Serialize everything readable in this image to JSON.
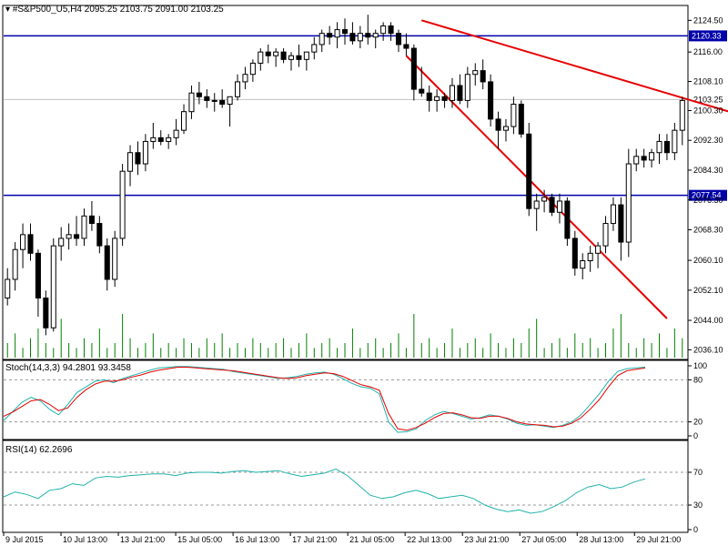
{
  "header": {
    "symbol": "#S&P500_U5,H4",
    "open": "2095.25",
    "high": "2103.75",
    "low": "2091.00",
    "close": "2103.25"
  },
  "colors": {
    "bull_body": "#ffffff",
    "bear_body": "#000000",
    "candle_outline": "#000000",
    "resistance_line": "#0000aa",
    "trend_line": "#e60000",
    "volume": "#008000",
    "stoch_main": "#20b2aa",
    "stoch_signal": "#e60000",
    "rsi": "#20b2aa",
    "current_price_line": "#c0c0c0",
    "label_bg": "#0000aa"
  },
  "chart_data": [
    {
      "type": "candlestick",
      "panel": "price",
      "y_ticks": [
        "2124.50",
        "2116.00",
        "2108.10",
        "2100.30",
        "2092.30",
        "2084.30",
        "2076.30",
        "2068.30",
        "2060.10",
        "2052.10",
        "2044.00",
        "2036.10"
      ],
      "ylim": [
        2034,
        2128
      ],
      "x_ticks": [
        "9 Jul 2015",
        "10 Jul 13:00",
        "13 Jul 21:00",
        "15 Jul 05:00",
        "16 Jul 13:00",
        "17 Jul 21:00",
        "21 Jul 05:00",
        "22 Jul 13:00",
        "23 Jul 21:00",
        "27 Jul 05:00",
        "28 Jul 13:00",
        "29 Jul 21:00"
      ],
      "horizontal_levels": [
        {
          "label": "2120.33",
          "value": 2120.33
        },
        {
          "label": "2077.54",
          "value": 2077.54
        }
      ],
      "current_price": {
        "label": "2103.25",
        "value": 2103.25
      },
      "trend_lines": [
        {
          "from": [
            54,
            2124.5
          ],
          "to": [
            117,
            2086.0
          ]
        },
        {
          "from": [
            52,
            2115.0
          ],
          "to": [
            86,
            2044.5
          ]
        }
      ],
      "candles": [
        [
          2050,
          2058,
          2048,
          2055
        ],
        [
          2055,
          2065,
          2052,
          2063
        ],
        [
          2063,
          2070,
          2058,
          2067
        ],
        [
          2067,
          2070,
          2060,
          2062
        ],
        [
          2062,
          2063,
          2045,
          2050
        ],
        [
          2050,
          2052,
          2040,
          2042
        ],
        [
          2042,
          2066,
          2041,
          2064
        ],
        [
          2064,
          2069,
          2060,
          2066
        ],
        [
          2066,
          2070,
          2063,
          2067
        ],
        [
          2067,
          2072,
          2064,
          2066
        ],
        [
          2066,
          2074,
          2064,
          2072
        ],
        [
          2072,
          2076,
          2068,
          2070
        ],
        [
          2070,
          2072,
          2062,
          2064
        ],
        [
          2064,
          2066,
          2052,
          2055
        ],
        [
          2055,
          2068,
          2053,
          2066
        ],
        [
          2066,
          2086,
          2064,
          2084
        ],
        [
          2084,
          2091,
          2080,
          2089
        ],
        [
          2089,
          2092,
          2083,
          2086
        ],
        [
          2086,
          2094,
          2084,
          2092
        ],
        [
          2092,
          2097,
          2090,
          2093
        ],
        [
          2093,
          2095,
          2091,
          2092
        ],
        [
          2092,
          2094,
          2090,
          2093
        ],
        [
          2093,
          2098,
          2091,
          2095
        ],
        [
          2095,
          2102,
          2094,
          2100
        ],
        [
          2100,
          2107,
          2098,
          2105
        ],
        [
          2105,
          2108,
          2102,
          2104
        ],
        [
          2104,
          2106,
          2101,
          2103
        ],
        [
          2103,
          2105,
          2100,
          2103
        ],
        [
          2103,
          2106,
          2101,
          2102
        ],
        [
          2102,
          2104,
          2096,
          2104
        ],
        [
          2104,
          2110,
          2103,
          2108
        ],
        [
          2108,
          2112,
          2106,
          2110
        ],
        [
          2110,
          2114,
          2108,
          2113
        ],
        [
          2113,
          2117,
          2111,
          2116
        ],
        [
          2116,
          2118,
          2113,
          2115
        ],
        [
          2115,
          2117,
          2112,
          2116
        ],
        [
          2116,
          2117,
          2113,
          2114
        ],
        [
          2114,
          2116,
          2111,
          2115
        ],
        [
          2115,
          2118,
          2112,
          2114
        ],
        [
          2114,
          2116,
          2111,
          2116
        ],
        [
          2116,
          2120,
          2114,
          2118
        ],
        [
          2118,
          2122,
          2116,
          2121
        ],
        [
          2121,
          2123,
          2118,
          2120
        ],
        [
          2120,
          2124,
          2117,
          2122
        ],
        [
          2122,
          2125,
          2118,
          2121
        ],
        [
          2121,
          2124,
          2118,
          2119
        ],
        [
          2119,
          2123,
          2117,
          2121
        ],
        [
          2121,
          2126,
          2118,
          2120
        ],
        [
          2120,
          2122,
          2117,
          2121
        ],
        [
          2121,
          2124,
          2119,
          2123
        ],
        [
          2123,
          2124,
          2119,
          2121
        ],
        [
          2121,
          2122,
          2116,
          2118
        ],
        [
          2118,
          2121,
          2115,
          2117
        ],
        [
          2117,
          2118,
          2103,
          2106
        ],
        [
          2106,
          2112,
          2104,
          2105
        ],
        [
          2105,
          2107,
          2100,
          2103
        ],
        [
          2103,
          2106,
          2100,
          2104
        ],
        [
          2104,
          2105,
          2101,
          2103
        ],
        [
          2103,
          2109,
          2101,
          2107
        ],
        [
          2107,
          2110,
          2102,
          2103
        ],
        [
          2103,
          2112,
          2101,
          2110
        ],
        [
          2110,
          2113,
          2107,
          2111
        ],
        [
          2111,
          2114,
          2106,
          2108
        ],
        [
          2108,
          2110,
          2096,
          2098
        ],
        [
          2098,
          2100,
          2090,
          2095
        ],
        [
          2095,
          2098,
          2092,
          2096
        ],
        [
          2096,
          2104,
          2094,
          2102
        ],
        [
          2102,
          2103,
          2093,
          2094
        ],
        [
          2094,
          2097,
          2072,
          2074
        ],
        [
          2074,
          2078,
          2068,
          2076
        ],
        [
          2076,
          2079,
          2073,
          2077
        ],
        [
          2077,
          2078,
          2072,
          2073
        ],
        [
          2073,
          2078,
          2070,
          2076
        ],
        [
          2076,
          2077,
          2064,
          2066
        ],
        [
          2066,
          2068,
          2056,
          2058
        ],
        [
          2058,
          2062,
          2055,
          2060
        ],
        [
          2060,
          2064,
          2057,
          2062
        ],
        [
          2062,
          2065,
          2058,
          2064
        ],
        [
          2064,
          2072,
          2062,
          2070
        ],
        [
          2070,
          2077,
          2068,
          2075
        ],
        [
          2075,
          2077,
          2060,
          2065
        ],
        [
          2065,
          2090,
          2061,
          2086
        ],
        [
          2086,
          2090,
          2084,
          2088
        ],
        [
          2088,
          2090,
          2085,
          2087
        ],
        [
          2087,
          2090,
          2085,
          2089
        ],
        [
          2089,
          2094,
          2086,
          2092
        ],
        [
          2092,
          2094,
          2087,
          2089
        ],
        [
          2089,
          2097,
          2087,
          2095
        ],
        [
          2095,
          2104,
          2091,
          2103
        ]
      ],
      "volumes": [
        3,
        5,
        2,
        4,
        6,
        3,
        2,
        8,
        3,
        2,
        4,
        3,
        6,
        2,
        3,
        9,
        4,
        2,
        3,
        5,
        2,
        3,
        2,
        4,
        3,
        2,
        4,
        3,
        5,
        2,
        3,
        2,
        4,
        3,
        2,
        3,
        4,
        2,
        3,
        5,
        2,
        3,
        4,
        2,
        3,
        6,
        2,
        3,
        4,
        2,
        3,
        5,
        2,
        9,
        3,
        4,
        2,
        3,
        6,
        2,
        3,
        4,
        2,
        5,
        3,
        2,
        4,
        3,
        6,
        8,
        2,
        3,
        4,
        2,
        5,
        3,
        4,
        2,
        3,
        6,
        9,
        3,
        2,
        4,
        3,
        5,
        2,
        6,
        4
      ]
    },
    {
      "type": "line",
      "panel": "stochastic",
      "title": "Stoch(14,3,3) 94.2801 93.3458",
      "y_ticks": [
        "100",
        "80",
        "20",
        "0"
      ],
      "ylim": [
        0,
        100
      ],
      "levels": [
        80,
        20
      ],
      "series": [
        {
          "values": [
            22,
            35,
            48,
            55,
            50,
            38,
            30,
            45,
            62,
            70,
            78,
            80,
            76,
            82,
            86,
            90,
            94,
            97,
            98,
            99,
            99,
            98,
            97,
            96,
            95,
            92,
            90,
            88,
            86,
            84,
            82,
            83,
            85,
            88,
            90,
            91,
            88,
            82,
            75,
            70,
            68,
            60,
            20,
            5,
            6,
            10,
            22,
            30,
            35,
            32,
            28,
            24,
            26,
            30,
            28,
            24,
            18,
            15,
            16,
            14,
            12,
            15,
            20,
            30,
            45,
            60,
            78,
            92,
            96,
            97,
            98
          ]
        },
        {
          "values": [
            28,
            34,
            42,
            50,
            52,
            45,
            36,
            40,
            55,
            66,
            74,
            78,
            78,
            80,
            84,
            87,
            91,
            94,
            96,
            98,
            98,
            97,
            96,
            95,
            94,
            93,
            91,
            89,
            87,
            85,
            83,
            82,
            83,
            86,
            88,
            90,
            89,
            85,
            79,
            73,
            70,
            65,
            32,
            10,
            8,
            12,
            18,
            26,
            32,
            33,
            30,
            26,
            25,
            28,
            28,
            25,
            20,
            17,
            16,
            15,
            13,
            14,
            18,
            26,
            38,
            52,
            70,
            86,
            93,
            95,
            97
          ]
        }
      ]
    },
    {
      "type": "line",
      "panel": "rsi",
      "title": "RSI(14) 62.2696",
      "y_ticks": [
        "70",
        "30",
        "0"
      ],
      "ylim": [
        0,
        100
      ],
      "levels": [
        70,
        30
      ],
      "series": [
        {
          "values": [
            40,
            46,
            43,
            38,
            48,
            50,
            56,
            54,
            63,
            65,
            64,
            66,
            67,
            68,
            68,
            66,
            69,
            70,
            70,
            69,
            71,
            72,
            70,
            71,
            72,
            68,
            65,
            67,
            69,
            74,
            66,
            54,
            42,
            38,
            40,
            45,
            48,
            44,
            38,
            40,
            42,
            38,
            30,
            25,
            22,
            24,
            20,
            22,
            28,
            35,
            45,
            52,
            55,
            50,
            52,
            58,
            62
          ]
        }
      ]
    }
  ]
}
